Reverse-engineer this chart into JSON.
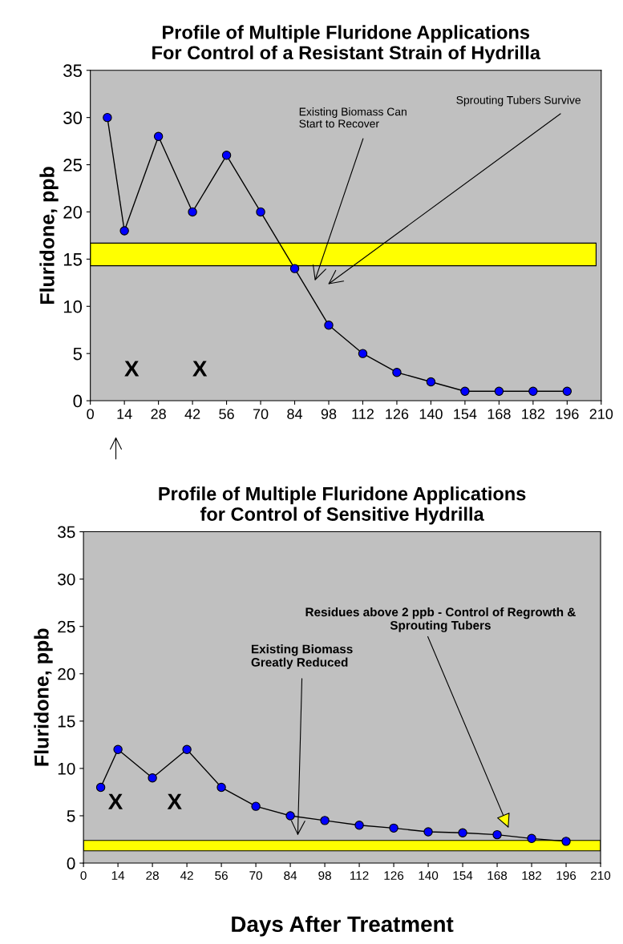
{
  "chart_data": [
    {
      "type": "line",
      "title": "Profile of Multiple Fluridone Applications\nFor Control of a Resistant Strain of Hydrilla",
      "ylabel": "Fluridone, ppb",
      "x": [
        7,
        14,
        28,
        42,
        56,
        70,
        84,
        98,
        112,
        126,
        140,
        154,
        168,
        182,
        196
      ],
      "series": [
        {
          "color": "#0000ff",
          "values": [
            30,
            18,
            28,
            20,
            26,
            20,
            14,
            8,
            5,
            3,
            2,
            1,
            1,
            1,
            1
          ]
        }
      ],
      "marker": "circle",
      "line_style": "solid",
      "grid": false,
      "legend": false,
      "xlim": [
        0,
        210
      ],
      "xticks": [
        0,
        14,
        28,
        42,
        56,
        70,
        84,
        98,
        112,
        126,
        140,
        154,
        168,
        182,
        196,
        210
      ],
      "ylim": [
        0,
        35
      ],
      "yticks": [
        0,
        5,
        10,
        15,
        20,
        25,
        30,
        35
      ],
      "bands": [
        {
          "axis": "y",
          "from": 14.3,
          "to": 16.7,
          "color": "#ffff00"
        }
      ],
      "annotations": [
        "X",
        "X",
        "Existing Biomass Can\nStart to Recover",
        "Sprouting Tubers Survive"
      ]
    },
    {
      "type": "line",
      "title": "Profile of Multiple Fluridone Applications\nfor Control of Sensitive Hydrilla",
      "ylabel": "Fluridone, ppb",
      "xlabel": "Days After Treatment",
      "x": [
        7,
        14,
        28,
        42,
        56,
        70,
        84,
        98,
        112,
        126,
        140,
        154,
        168,
        182,
        196
      ],
      "series": [
        {
          "color": "#0000ff",
          "values": [
            8,
            12,
            9,
            12,
            8,
            6,
            5,
            4.5,
            4,
            3.7,
            3.3,
            3.2,
            3,
            2.6,
            2.3
          ]
        }
      ],
      "marker": "circle",
      "line_style": "solid",
      "grid": false,
      "legend": false,
      "xlim": [
        0,
        210
      ],
      "xticks": [
        0,
        14,
        28,
        42,
        56,
        70,
        84,
        98,
        112,
        126,
        140,
        154,
        168,
        182,
        196,
        210
      ],
      "ylim": [
        0,
        35
      ],
      "yticks": [
        0,
        5,
        10,
        15,
        20,
        25,
        30,
        35
      ],
      "bands": [
        {
          "axis": "y",
          "from": 1.3,
          "to": 2.4,
          "color": "#ffff00"
        }
      ],
      "annotations": [
        "X",
        "X",
        "Existing Biomass\nGreatly Reduced",
        "Residues above 2 ppb - Control of Regrowth &\nSprouting Tubers"
      ]
    }
  ]
}
